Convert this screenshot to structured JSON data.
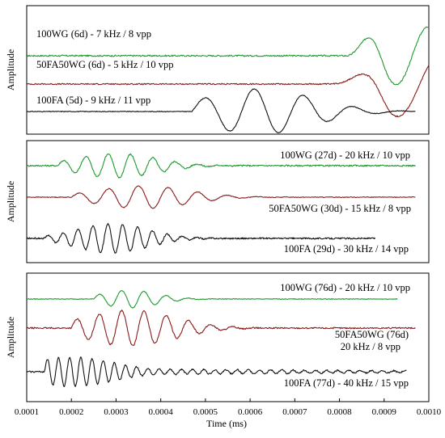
{
  "chart_data": {
    "type": "line",
    "xlabel": "Time (ms)",
    "xlim": [
      0.0001,
      0.001
    ],
    "xticks": [
      "0.0001",
      "0.0002",
      "0.0003",
      "0.0004",
      "0.0005",
      "0.0006",
      "0.0007",
      "0.0008",
      "0.0009",
      "0.0010"
    ],
    "colors": {
      "green": "#1f9a2e",
      "red": "#8b1a1a",
      "black": "#111111"
    },
    "panels": [
      {
        "ylabel": "Amplitude",
        "series": [
          {
            "name": "100WG (6d) - 7 kHz / 8 vpp",
            "color": "green",
            "wave": {
              "t0": 0.00082,
              "t1": 0.001,
              "f": 7,
              "env": [
                0.0009,
                4e-05
              ],
              "amp": 1.0,
              "noise": 0.05,
              "grow": true
            }
          },
          {
            "name": "50FA50WG (6d) - 5 kHz / 10 vpp",
            "color": "red",
            "wave": {
              "t0": 0.00078,
              "t1": 0.001,
              "f": 5,
              "env": [
                0.00092,
                5e-05
              ],
              "amp": 1.0,
              "noise": 0.04,
              "grow": true
            }
          },
          {
            "name": "100FA (5d) - 9 kHz / 11 vpp",
            "color": "black",
            "wave": {
              "t0": 0.00047,
              "t1": 0.00097,
              "f": 9,
              "env": [
                0.00062,
                0.00012
              ],
              "amp": 1.0,
              "noise": 0.03
            }
          }
        ]
      },
      {
        "ylabel": "Amplitude",
        "series": [
          {
            "name": "100WG (27d) - 20 kHz / 10 vpp",
            "color": "green",
            "wave": {
              "t0": 0.00017,
              "t1": 0.00097,
              "f": 20,
              "env": [
                0.0003,
                9e-05
              ],
              "amp": 1.0,
              "noise": 0.12
            }
          },
          {
            "name": "50FA50WG (30d) - 15 kHz / 8 vpp",
            "color": "red",
            "wave": {
              "t0": 0.0002,
              "t1": 0.00097,
              "f": 15,
              "env": [
                0.00036,
                0.0001
              ],
              "amp": 1.0,
              "noise": 0.06
            }
          },
          {
            "name": "100FA (29d) - 30 kHz / 14 vpp",
            "color": "black",
            "wave": {
              "t0": 0.00014,
              "t1": 0.00088,
              "f": 30,
              "env": [
                0.00029,
                8e-05
              ],
              "amp": 1.0,
              "noise": 0.1
            }
          }
        ]
      },
      {
        "ylabel": "Amplitude",
        "series": [
          {
            "name": "100WG (76d) - 20 kHz / 10 vpp",
            "color": "green",
            "wave": {
              "t0": 0.00025,
              "t1": 0.00093,
              "f": 20,
              "env": [
                0.00033,
                6e-05
              ],
              "amp": 1.0,
              "noise": 0.08
            }
          },
          {
            "name": "50FA50WG (76d)",
            "name2": "20 kHz / 8 vpp",
            "color": "red",
            "wave": {
              "t0": 0.0002,
              "t1": 0.00097,
              "f": 20,
              "env": [
                0.00033,
                0.0001
              ],
              "amp": 1.0,
              "noise": 0.08
            }
          },
          {
            "name": "100FA (77d) - 40 kHz / 15 vpp",
            "color": "black",
            "wave": {
              "t0": 0.00014,
              "t1": 0.00095,
              "f": 40,
              "env": [
                0.0002,
                0.0001
              ],
              "amp": 1.0,
              "noise": 0.1,
              "tail": 0.25
            }
          }
        ]
      }
    ]
  }
}
